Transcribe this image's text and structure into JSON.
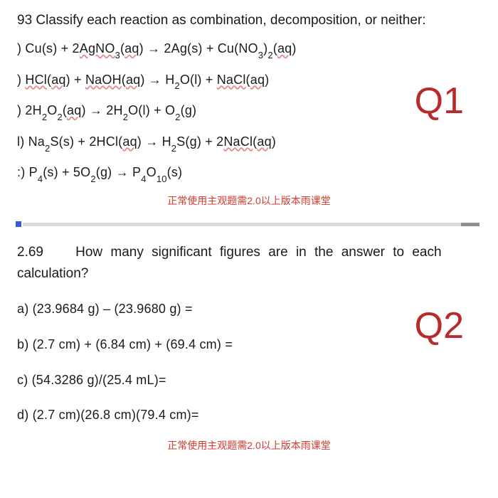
{
  "q1": {
    "number": "93",
    "prompt": "Classify each reaction as combination, decomposition, or neither:",
    "label": "Q1",
    "label_color": "#b92a2a",
    "items": [
      {
        "prefix": ")",
        "html": "Cu(s) + 2<span class='wavy'>AgNO</span><sub>3</sub>(<span class='wavy'>aq</span>) <span class='arrow'>→</span> 2Ag(s) + Cu(NO<sub>3</sub>)<sub>2</sub>(<span class='wavy'>aq</span>)"
      },
      {
        "prefix": ")",
        "html": "<span class='wavy'>HCl</span>(<span class='wavy'>aq</span>) + <span class='wavy'>NaOH</span>(<span class='wavy'>aq</span>) <span class='arrow'>→</span> H<sub>2</sub>O(l) + <span class='wavy'>NaCl</span>(<span class='wavy'>aq</span>)"
      },
      {
        "prefix": ")",
        "html": "2H<sub>2</sub>O<sub>2</sub>(<span class='wavy'>aq</span>) <span class='arrow'>→</span> 2H<sub>2</sub>O(l) + O<sub>2</sub>(g)"
      },
      {
        "prefix": "l)",
        "html": "Na<sub>2</sub>S(s) + 2HCl(<span class='wavy'>aq</span>) <span class='arrow'>→</span> H<sub>2</sub>S(g) + 2<span class='wavy'>NaCl</span>(<span class='wavy'>aq</span>)"
      },
      {
        "prefix": ":)",
        "html": "P<sub>4</sub>(s) + 5O<sub>2</sub>(g) <span class='arrow'>→</span> P<sub>4</sub>O<sub>10</sub>(s)"
      }
    ],
    "note": "正常使用主观题需2.0以上版本雨课堂"
  },
  "q2": {
    "number": "2.69",
    "prompt": "How many significant figures are in the answer to each calculation?",
    "label": "Q2",
    "label_color": "#b92a2a",
    "items": [
      {
        "text": "a) (23.9684 g) – (23.9680 g) ="
      },
      {
        "text": "b) (2.7 cm) + (6.84 cm) + (69.4 cm) ="
      },
      {
        "text": "c) (54.3286 g)/(25.4 mL)="
      },
      {
        "text": "d) (2.7 cm)(26.8 cm)(79.4 cm)="
      }
    ],
    "note": "正常使用主观题需2.0以上版本雨课堂"
  }
}
